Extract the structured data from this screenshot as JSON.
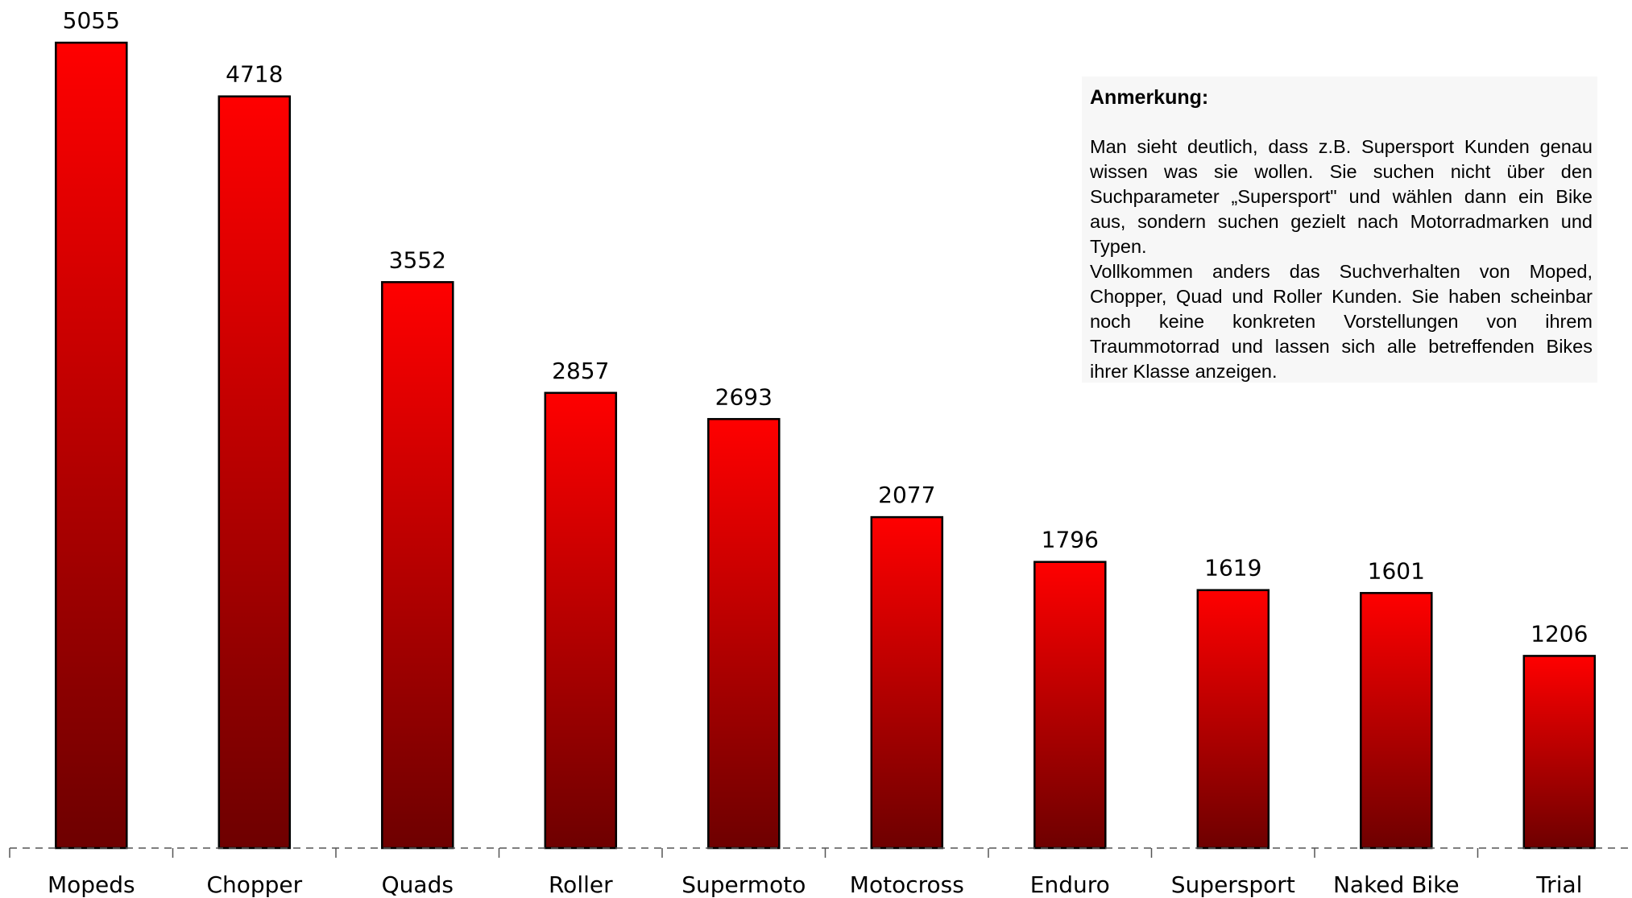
{
  "chart_data": {
    "type": "bar",
    "categories": [
      "Mopeds",
      "Chopper",
      "Quads",
      "Roller",
      "Supermoto",
      "Motocross",
      "Enduro",
      "Supersport",
      "Naked Bike",
      "Trial"
    ],
    "values": [
      5055,
      4718,
      3552,
      2857,
      2693,
      2077,
      1796,
      1619,
      1601,
      1206
    ],
    "title": "",
    "xlabel": "",
    "ylabel": "",
    "ylim": [
      0,
      5055
    ],
    "grid": false,
    "legend": "none",
    "bar_gradient": {
      "top": "#ff0000",
      "bottom": "#6e0000"
    }
  },
  "annotation": {
    "title": "Anmerkung:",
    "paragraphs": [
      "Man sieht deutlich, dass z.B. Supersport Kunden genau wissen was sie wollen. Sie suchen nicht über den Suchparameter „Supersport\" und wählen dann ein Bike aus, sondern suchen gezielt nach Motorradmarken und Typen.",
      "Vollkommen anders das Suchverhalten von Moped, Chopper, Quad und Roller Kunden. Sie haben scheinbar noch keine konkreten Vorstellungen von ihrem Traummotorrad und lassen sich alle betreffenden Bikes ihrer Klasse anzeigen."
    ]
  }
}
